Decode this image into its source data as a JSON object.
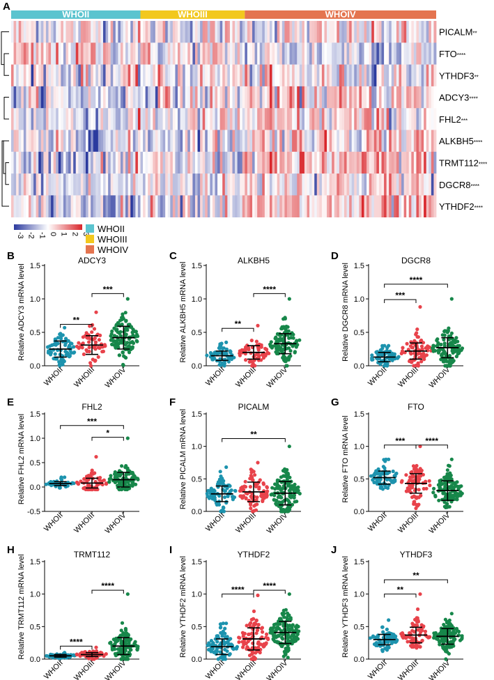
{
  "colors": {
    "WHOII": "#5bc4cf",
    "WHOIII": "#f2c81e",
    "WHOIV": "#e4744f",
    "dot_WHOII": "#1d93ae",
    "dot_WHOIII": "#e8434b",
    "dot_WHOIV": "#17874a",
    "heat_low": "#2b3a9e",
    "heat_mid": "#ffffff",
    "heat_high": "#d9262b"
  },
  "heatmap": {
    "panel_label": "A",
    "groups": [
      {
        "name": "WHOII",
        "count": 52
      },
      {
        "name": "WHOIII",
        "count": 42
      },
      {
        "name": "WHOIV",
        "count": 77
      }
    ],
    "rows": [
      {
        "gene": "PICALM",
        "sig": "**"
      },
      {
        "gene": "FTO",
        "sig": "****"
      },
      {
        "gene": "YTHDF3",
        "sig": "**"
      },
      {
        "gene": "ADCY3",
        "sig": "****"
      },
      {
        "gene": "FHL2",
        "sig": "***"
      },
      {
        "gene": "ALKBH5",
        "sig": "****"
      },
      {
        "gene": "TRMT112",
        "sig": "****"
      },
      {
        "gene": "DGCR8",
        "sig": "****"
      },
      {
        "gene": "YTHDF2",
        "sig": "****"
      }
    ],
    "colorbar_ticks": [
      "-3",
      "-2",
      "-1",
      "0",
      "1",
      "2",
      "3"
    ],
    "legend": [
      "WHOII",
      "WHOIII",
      "WHOIV"
    ]
  },
  "chart_data": [
    {
      "panel": "B",
      "type": "scatter",
      "title": "ADCY3",
      "ylabel": "Relative ADCY3 mRNA level",
      "categories": [
        "WHOII",
        "WHOIII",
        "WHOIV"
      ],
      "ylim": [
        0,
        1.5
      ],
      "yticks": [
        "0.0",
        "0.5",
        "1.0",
        "1.5"
      ],
      "mean": [
        0.25,
        0.31,
        0.42
      ],
      "sd": [
        0.12,
        0.14,
        0.17
      ],
      "n": [
        80,
        60,
        110
      ],
      "max": [
        0.57,
        0.8,
        1.0
      ],
      "brackets": [
        {
          "from": 0,
          "to": 1,
          "y": 0.62,
          "label": "**"
        },
        {
          "from": 1,
          "to": 2,
          "y": 1.08,
          "label": "***"
        }
      ]
    },
    {
      "panel": "C",
      "type": "scatter",
      "title": "ALKBH5",
      "ylabel": "Relative ALKBH5 mRNA level",
      "categories": [
        "WHOII",
        "WHOIII",
        "WHOIV"
      ],
      "ylim": [
        0,
        1.5
      ],
      "yticks": [
        "0.0",
        "0.5",
        "1.0",
        "1.5"
      ],
      "mean": [
        0.15,
        0.2,
        0.33
      ],
      "sd": [
        0.07,
        0.1,
        0.15
      ],
      "n": [
        55,
        60,
        110
      ],
      "max": [
        0.35,
        0.6,
        1.0
      ],
      "brackets": [
        {
          "from": 0,
          "to": 1,
          "y": 0.56,
          "label": "**"
        },
        {
          "from": 1,
          "to": 2,
          "y": 1.08,
          "label": "****"
        }
      ]
    },
    {
      "panel": "D",
      "type": "scatter",
      "title": "DGCR8",
      "ylabel": "Relative DGCR8 mRNA level",
      "categories": [
        "WHOII",
        "WHOIII",
        "WHOIV"
      ],
      "ylim": [
        0,
        1.5
      ],
      "yticks": [
        "0.0",
        "0.5",
        "1.0",
        "1.5"
      ],
      "mean": [
        0.13,
        0.22,
        0.27
      ],
      "sd": [
        0.07,
        0.12,
        0.15
      ],
      "n": [
        70,
        70,
        120
      ],
      "max": [
        0.3,
        0.88,
        1.0
      ],
      "brackets": [
        {
          "from": 0,
          "to": 1,
          "y": 0.99,
          "label": "***"
        },
        {
          "from": 0,
          "to": 2,
          "y": 1.22,
          "label": "****"
        }
      ]
    },
    {
      "panel": "E",
      "type": "scatter",
      "title": "FHL2",
      "ylabel": "Relative FHL2 mRNA level",
      "categories": [
        "WHOII",
        "WHOIII",
        "WHOIV"
      ],
      "ylim": [
        -0.5,
        1.5
      ],
      "yticks": [
        "-0.5",
        "0.0",
        "0.5",
        "1.0",
        "1.5"
      ],
      "mean": [
        0.07,
        0.08,
        0.15
      ],
      "sd": [
        0.04,
        0.1,
        0.15
      ],
      "n": [
        40,
        60,
        100
      ],
      "max": [
        0.2,
        0.62,
        1.0
      ],
      "brackets": [
        {
          "from": 0,
          "to": 2,
          "y": 1.26,
          "label": "***"
        },
        {
          "from": 1,
          "to": 2,
          "y": 1.02,
          "label": "*"
        }
      ]
    },
    {
      "panel": "F",
      "type": "scatter",
      "title": "PICALM",
      "ylabel": "Relative PICALM mRNA level",
      "categories": [
        "WHOII",
        "WHOIII",
        "WHOIV"
      ],
      "ylim": [
        0,
        1.5
      ],
      "yticks": [
        "0.0",
        "0.5",
        "1.0",
        "1.5"
      ],
      "mean": [
        0.27,
        0.3,
        0.28
      ],
      "sd": [
        0.12,
        0.15,
        0.18
      ],
      "n": [
        80,
        80,
        130
      ],
      "max": [
        0.68,
        0.75,
        1.0
      ],
      "brackets": [
        {
          "from": 0,
          "to": 2,
          "y": 1.12,
          "label": "**"
        }
      ]
    },
    {
      "panel": "G",
      "type": "scatter",
      "title": "FTO",
      "ylabel": "Relative FTO mRNA level",
      "categories": [
        "WHOII",
        "WHOIII",
        "WHOIV"
      ],
      "ylim": [
        0,
        1.5
      ],
      "yticks": [
        "0.0",
        "0.5",
        "1.0",
        "1.5"
      ],
      "mean": [
        0.52,
        0.43,
        0.32
      ],
      "sd": [
        0.1,
        0.15,
        0.15
      ],
      "n": [
        70,
        80,
        120
      ],
      "max": [
        0.8,
        1.0,
        0.8
      ],
      "brackets": [
        {
          "from": 0,
          "to": 1,
          "y": 1.02,
          "label": "***"
        },
        {
          "from": 1,
          "to": 2,
          "y": 1.02,
          "label": "****"
        }
      ]
    },
    {
      "panel": "H",
      "type": "scatter",
      "title": "TRMT112",
      "ylabel": "Relative TRMT112 mRNA level",
      "categories": [
        "WHOII",
        "WHOIII",
        "WHOIV"
      ],
      "ylim": [
        0,
        1.5
      ],
      "yticks": [
        "0.0",
        "0.5",
        "1.0",
        "1.5"
      ],
      "mean": [
        0.05,
        0.07,
        0.2
      ],
      "sd": [
        0.02,
        0.03,
        0.13
      ],
      "n": [
        60,
        60,
        110
      ],
      "max": [
        0.1,
        0.18,
        1.0
      ],
      "brackets": [
        {
          "from": 0,
          "to": 1,
          "y": 0.2,
          "label": "****"
        },
        {
          "from": 1,
          "to": 2,
          "y": 1.06,
          "label": "****"
        }
      ]
    },
    {
      "panel": "I",
      "type": "scatter",
      "title": "YTHDF2",
      "ylabel": "Relative YTHDF2 mRNA level",
      "categories": [
        "WHOII",
        "WHOIII",
        "WHOIV"
      ],
      "ylim": [
        0,
        1.5
      ],
      "yticks": [
        "0.0",
        "0.5",
        "1.0",
        "1.5"
      ],
      "mean": [
        0.19,
        0.31,
        0.41
      ],
      "sd": [
        0.12,
        0.17,
        0.17
      ],
      "n": [
        90,
        90,
        140
      ],
      "max": [
        0.55,
        0.98,
        1.0
      ],
      "brackets": [
        {
          "from": 0,
          "to": 1,
          "y": 1.0,
          "label": "****"
        },
        {
          "from": 1,
          "to": 2,
          "y": 1.06,
          "label": "****"
        }
      ]
    },
    {
      "panel": "J",
      "type": "scatter",
      "title": "YTHDF3",
      "ylabel": "Relative YTHDF3 mRNA level",
      "categories": [
        "WHOII",
        "WHOIII",
        "WHOIV"
      ],
      "ylim": [
        0,
        1.5
      ],
      "yticks": [
        "0.0",
        "0.5",
        "1.0",
        "1.5"
      ],
      "mean": [
        0.3,
        0.37,
        0.35
      ],
      "sd": [
        0.08,
        0.12,
        0.12
      ],
      "n": [
        70,
        70,
        120
      ],
      "max": [
        0.6,
        1.0,
        0.7
      ],
      "brackets": [
        {
          "from": 0,
          "to": 1,
          "y": 1.0,
          "label": "**"
        },
        {
          "from": 0,
          "to": 2,
          "y": 1.22,
          "label": "**"
        }
      ]
    }
  ]
}
